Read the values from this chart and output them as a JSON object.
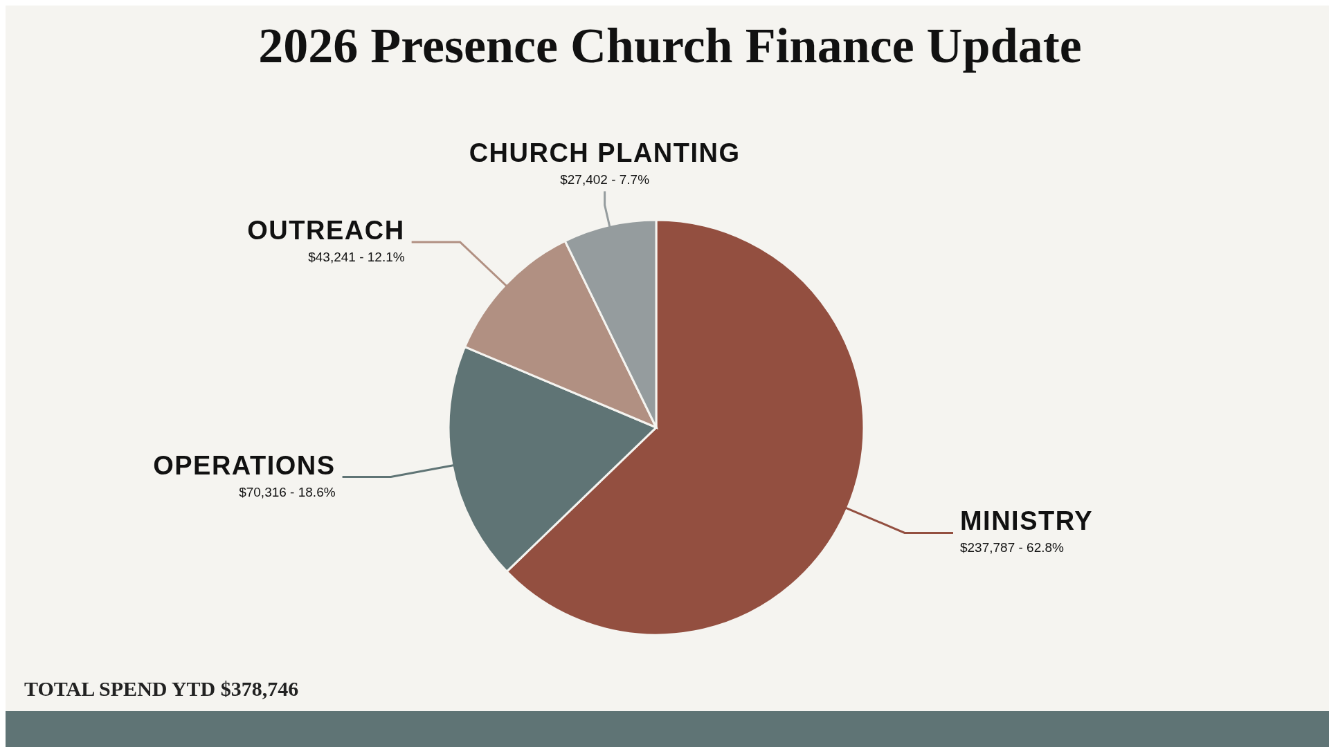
{
  "chart_data": {
    "type": "pie",
    "title": "2026 Presence Church Finance Update",
    "categories": [
      "MINISTRY",
      "OPERATIONS",
      "OUTREACH",
      "CHURCH PLANTING"
    ],
    "values": [
      237787,
      70316,
      43241,
      27402
    ],
    "value_labels": [
      "$237,787 - 62.8%",
      "$70,316 - 18.6%",
      "$43,241 - 12.1%",
      "$27,402 - 7.7%"
    ],
    "colors": [
      "#934f40",
      "#5f7475",
      "#b19082",
      "#959c9e"
    ],
    "annotations": [
      "TOTAL SPEND YTD $378,746"
    ]
  }
}
